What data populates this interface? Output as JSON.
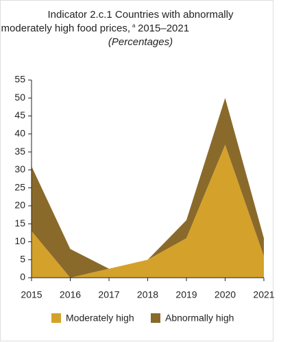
{
  "chart_data": {
    "type": "stacked_area",
    "title": [
      "Indicator 2.c.1 Countries with abnormally",
      "or moderately high food prices,"
    ],
    "title_note": "a",
    "title_years": "2015–2021",
    "subtitle": "(Percentages)",
    "x": [
      2015,
      2016,
      2017,
      2018,
      2019,
      2020,
      2021
    ],
    "xlim": [
      2015,
      2021
    ],
    "xticks": [
      2015,
      2016,
      2017,
      2018,
      2019,
      2020,
      2021
    ],
    "ylim": [
      0,
      55
    ],
    "yticks": [
      0,
      5,
      10,
      15,
      20,
      25,
      30,
      35,
      40,
      45,
      50,
      55
    ],
    "series": [
      {
        "name": "Moderately high",
        "color": "#d4a22b",
        "values": [
          13,
          0,
          2.5,
          5,
          11,
          37,
          6
        ]
      },
      {
        "name": "Abnormally high",
        "color": "#8a6a2b",
        "values": [
          18,
          8,
          0,
          0,
          5,
          13,
          5
        ]
      }
    ],
    "legend": "bottom"
  }
}
